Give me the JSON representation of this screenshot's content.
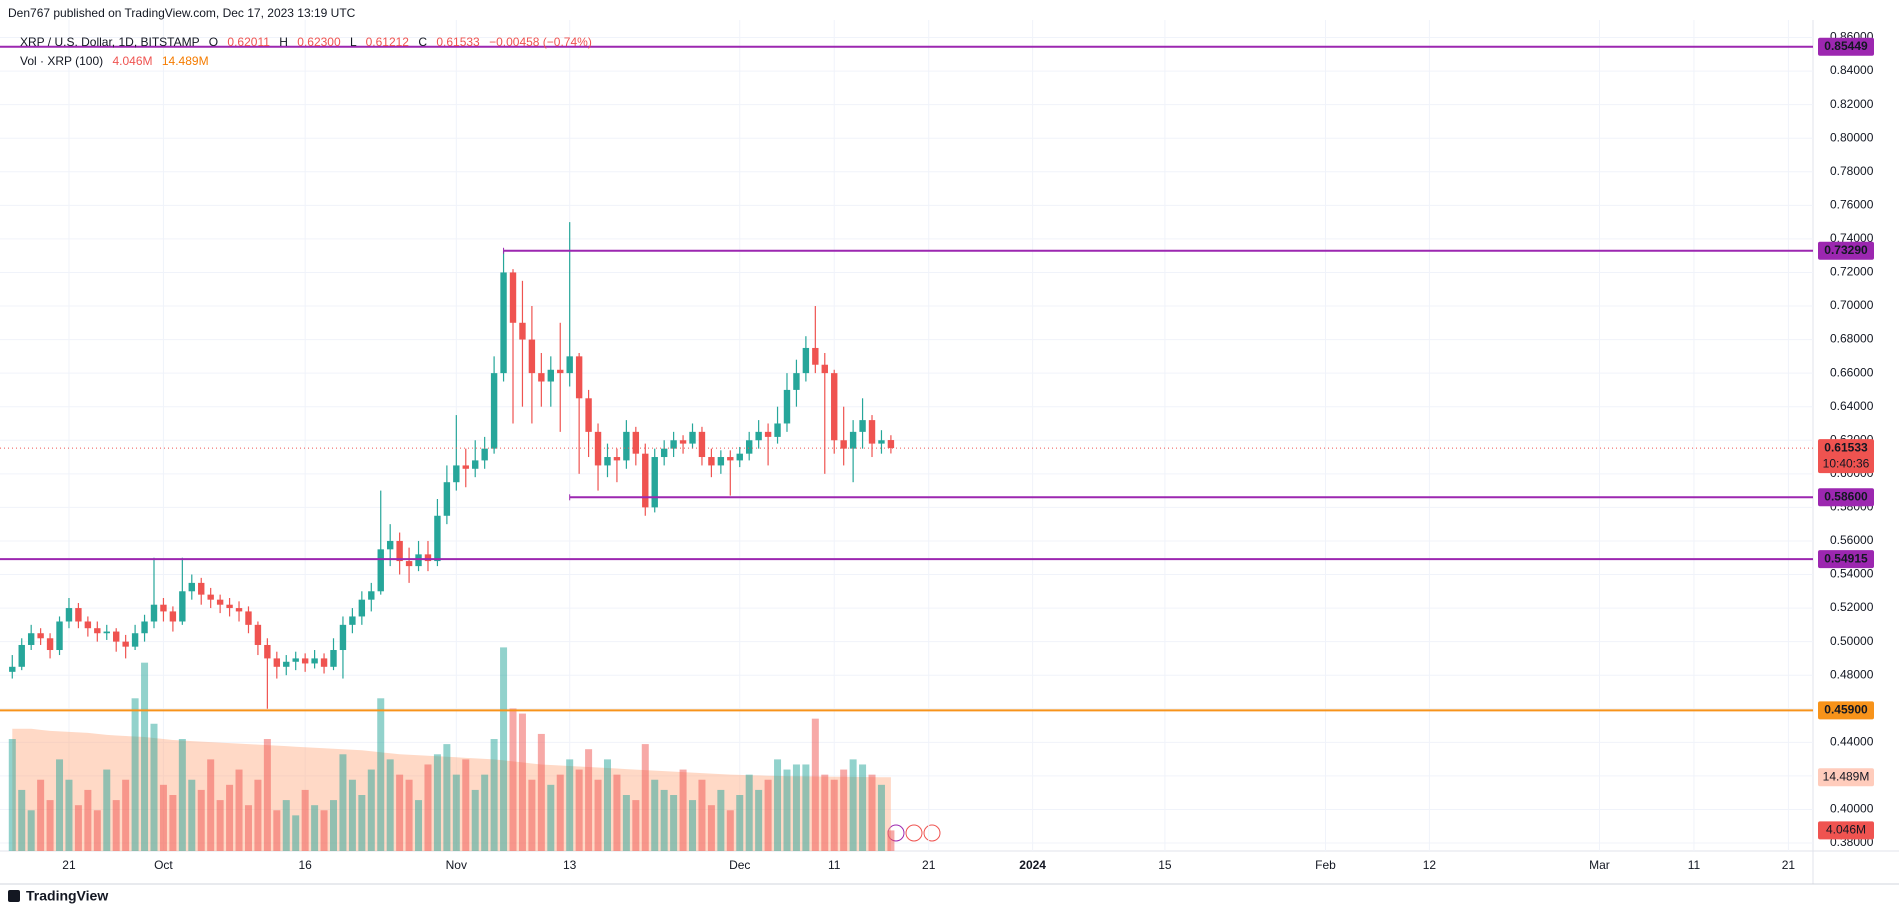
{
  "header": "Den767 published on TradingView.com, Dec 17, 2023 13:19 UTC",
  "footer": "TradingView",
  "chart_data": {
    "type": "candlestick",
    "symbol": "XRP / U.S. Dollar, 1D, BITSTAMP",
    "ohlc_legend": [
      {
        "key": "O",
        "value": "0.62011"
      },
      {
        "key": "H",
        "value": "0.62300"
      },
      {
        "key": "L",
        "value": "0.61212"
      },
      {
        "key": "C",
        "value": "0.61533"
      }
    ],
    "change": "−0.00458 (−0.74%)",
    "countdown": "10:40:36",
    "up_color": "#26a69a",
    "down_color": "#ef5350",
    "candles": [
      [
        0.482,
        0.492,
        0.478,
        0.485
      ],
      [
        0.485,
        0.502,
        0.483,
        0.498
      ],
      [
        0.498,
        0.51,
        0.495,
        0.505
      ],
      [
        0.505,
        0.508,
        0.498,
        0.502
      ],
      [
        0.502,
        0.505,
        0.49,
        0.495
      ],
      [
        0.495,
        0.515,
        0.492,
        0.512
      ],
      [
        0.512,
        0.526,
        0.508,
        0.52
      ],
      [
        0.52,
        0.523,
        0.508,
        0.512
      ],
      [
        0.512,
        0.515,
        0.503,
        0.508
      ],
      [
        0.508,
        0.512,
        0.5,
        0.505
      ],
      [
        0.505,
        0.51,
        0.501,
        0.506
      ],
      [
        0.506,
        0.508,
        0.494,
        0.5
      ],
      [
        0.5,
        0.504,
        0.49,
        0.497
      ],
      [
        0.497,
        0.51,
        0.495,
        0.505
      ],
      [
        0.505,
        0.516,
        0.5,
        0.512
      ],
      [
        0.512,
        0.55,
        0.508,
        0.522
      ],
      [
        0.522,
        0.526,
        0.512,
        0.518
      ],
      [
        0.518,
        0.521,
        0.506,
        0.512
      ],
      [
        0.512,
        0.55,
        0.51,
        0.53
      ],
      [
        0.53,
        0.54,
        0.525,
        0.535
      ],
      [
        0.535,
        0.538,
        0.522,
        0.528
      ],
      [
        0.528,
        0.532,
        0.52,
        0.525
      ],
      [
        0.525,
        0.528,
        0.517,
        0.522
      ],
      [
        0.522,
        0.526,
        0.515,
        0.52
      ],
      [
        0.52,
        0.524,
        0.512,
        0.518
      ],
      [
        0.518,
        0.521,
        0.505,
        0.51
      ],
      [
        0.51,
        0.512,
        0.492,
        0.498
      ],
      [
        0.498,
        0.502,
        0.46,
        0.49
      ],
      [
        0.49,
        0.494,
        0.478,
        0.485
      ],
      [
        0.485,
        0.492,
        0.48,
        0.488
      ],
      [
        0.488,
        0.494,
        0.483,
        0.49
      ],
      [
        0.49,
        0.493,
        0.482,
        0.487
      ],
      [
        0.487,
        0.495,
        0.484,
        0.49
      ],
      [
        0.49,
        0.493,
        0.481,
        0.485
      ],
      [
        0.485,
        0.502,
        0.483,
        0.495
      ],
      [
        0.495,
        0.515,
        0.478,
        0.51
      ],
      [
        0.51,
        0.52,
        0.505,
        0.515
      ],
      [
        0.515,
        0.53,
        0.51,
        0.525
      ],
      [
        0.525,
        0.535,
        0.518,
        0.53
      ],
      [
        0.53,
        0.59,
        0.528,
        0.555
      ],
      [
        0.555,
        0.57,
        0.545,
        0.56
      ],
      [
        0.56,
        0.565,
        0.54,
        0.548
      ],
      [
        0.548,
        0.556,
        0.535,
        0.545
      ],
      [
        0.545,
        0.56,
        0.542,
        0.552
      ],
      [
        0.552,
        0.56,
        0.542,
        0.548
      ],
      [
        0.548,
        0.585,
        0.545,
        0.575
      ],
      [
        0.575,
        0.605,
        0.57,
        0.595
      ],
      [
        0.595,
        0.635,
        0.59,
        0.605
      ],
      [
        0.605,
        0.615,
        0.592,
        0.603
      ],
      [
        0.603,
        0.62,
        0.598,
        0.608
      ],
      [
        0.608,
        0.622,
        0.603,
        0.615
      ],
      [
        0.615,
        0.67,
        0.612,
        0.66
      ],
      [
        0.66,
        0.733,
        0.655,
        0.72
      ],
      [
        0.72,
        0.722,
        0.63,
        0.69
      ],
      [
        0.69,
        0.715,
        0.64,
        0.68
      ],
      [
        0.68,
        0.7,
        0.63,
        0.66
      ],
      [
        0.66,
        0.672,
        0.64,
        0.655
      ],
      [
        0.655,
        0.67,
        0.64,
        0.662
      ],
      [
        0.662,
        0.69,
        0.625,
        0.66
      ],
      [
        0.66,
        0.75,
        0.652,
        0.67
      ],
      [
        0.67,
        0.672,
        0.6,
        0.645
      ],
      [
        0.645,
        0.65,
        0.61,
        0.625
      ],
      [
        0.625,
        0.63,
        0.59,
        0.605
      ],
      [
        0.605,
        0.618,
        0.598,
        0.61
      ],
      [
        0.61,
        0.615,
        0.595,
        0.608
      ],
      [
        0.608,
        0.632,
        0.603,
        0.625
      ],
      [
        0.625,
        0.628,
        0.605,
        0.612
      ],
      [
        0.612,
        0.618,
        0.575,
        0.58
      ],
      [
        0.58,
        0.615,
        0.577,
        0.61
      ],
      [
        0.61,
        0.62,
        0.605,
        0.615
      ],
      [
        0.615,
        0.625,
        0.61,
        0.62
      ],
      [
        0.62,
        0.623,
        0.612,
        0.618
      ],
      [
        0.618,
        0.63,
        0.615,
        0.625
      ],
      [
        0.625,
        0.628,
        0.605,
        0.61
      ],
      [
        0.61,
        0.615,
        0.598,
        0.605
      ],
      [
        0.605,
        0.614,
        0.6,
        0.61
      ],
      [
        0.61,
        0.614,
        0.587,
        0.608
      ],
      [
        0.608,
        0.616,
        0.604,
        0.612
      ],
      [
        0.612,
        0.625,
        0.608,
        0.62
      ],
      [
        0.62,
        0.632,
        0.615,
        0.625
      ],
      [
        0.625,
        0.63,
        0.605,
        0.622
      ],
      [
        0.622,
        0.64,
        0.618,
        0.63
      ],
      [
        0.63,
        0.66,
        0.625,
        0.65
      ],
      [
        0.65,
        0.668,
        0.64,
        0.66
      ],
      [
        0.66,
        0.682,
        0.655,
        0.675
      ],
      [
        0.675,
        0.7,
        0.66,
        0.665
      ],
      [
        0.665,
        0.672,
        0.6,
        0.66
      ],
      [
        0.66,
        0.662,
        0.612,
        0.62
      ],
      [
        0.62,
        0.64,
        0.605,
        0.615
      ],
      [
        0.615,
        0.632,
        0.595,
        0.625
      ],
      [
        0.625,
        0.645,
        0.615,
        0.632
      ],
      [
        0.632,
        0.635,
        0.61,
        0.618
      ],
      [
        0.618,
        0.626,
        0.612,
        0.62
      ],
      [
        0.62011,
        0.623,
        0.61212,
        0.61533
      ]
    ],
    "ylim": [
      0.38,
      0.86
    ],
    "yticks": [
      {
        "value": 0.38,
        "label": "0.38000"
      },
      {
        "value": 0.4,
        "label": "0.40000"
      },
      {
        "value": 0.42,
        "label": "0.42000"
      },
      {
        "value": 0.44,
        "label": "0.44000"
      },
      {
        "value": 0.46,
        "label": "0.46000"
      },
      {
        "value": 0.48,
        "label": "0.48000"
      },
      {
        "value": 0.5,
        "label": "0.50000"
      },
      {
        "value": 0.52,
        "label": "0.52000"
      },
      {
        "value": 0.54,
        "label": "0.54000"
      },
      {
        "value": 0.56,
        "label": "0.56000"
      },
      {
        "value": 0.58,
        "label": "0.58000"
      },
      {
        "value": 0.6,
        "label": "0.60000"
      },
      {
        "value": 0.62,
        "label": "0.62000"
      },
      {
        "value": 0.64,
        "label": "0.64000"
      },
      {
        "value": 0.66,
        "label": "0.66000"
      },
      {
        "value": 0.68,
        "label": "0.68000"
      },
      {
        "value": 0.7,
        "label": "0.70000"
      },
      {
        "value": 0.72,
        "label": "0.72000"
      },
      {
        "value": 0.74,
        "label": "0.74000"
      },
      {
        "value": 0.76,
        "label": "0.76000"
      },
      {
        "value": 0.78,
        "label": "0.78000"
      },
      {
        "value": 0.8,
        "label": "0.80000"
      },
      {
        "value": 0.82,
        "label": "0.82000"
      },
      {
        "value": 0.84,
        "label": "0.84000"
      },
      {
        "value": 0.86,
        "label": "0.86000"
      }
    ],
    "xlim": [
      -1.3,
      190.6
    ],
    "xticks": [
      {
        "value": 6,
        "label": "21"
      },
      {
        "value": 16,
        "label": "Oct"
      },
      {
        "value": 31,
        "label": "16"
      },
      {
        "value": 47,
        "label": "Nov"
      },
      {
        "value": 59,
        "label": "13"
      },
      {
        "value": 77,
        "label": "Dec"
      },
      {
        "value": 87,
        "label": "11"
      },
      {
        "value": 97,
        "label": "21"
      },
      {
        "value": 108,
        "label": "2024"
      },
      {
        "value": 122,
        "label": "15"
      },
      {
        "value": 139,
        "label": "Feb"
      },
      {
        "value": 150,
        "label": "12"
      },
      {
        "value": 168,
        "label": "Mar"
      },
      {
        "value": 178,
        "label": "11"
      },
      {
        "value": 188,
        "label": "21"
      }
    ],
    "grid": true,
    "levels": [
      {
        "value": 0.85449,
        "label": "0.85449",
        "color": "#9c27b0"
      },
      {
        "value": 0.7329,
        "label": "0.73290",
        "color": "#9c27b0",
        "x_start": 52
      },
      {
        "value": 0.586,
        "label": "0.58600",
        "color": "#9c27b0",
        "x_start": 59
      },
      {
        "value": 0.54915,
        "label": "0.54915",
        "color": "#9c27b0"
      },
      {
        "value": 0.459,
        "label": "0.45900",
        "color": "#f7931a"
      }
    ],
    "volume": {
      "name": "Vol · XRP (100)",
      "values": [
        22,
        12,
        8,
        14,
        10,
        18,
        14,
        9,
        12,
        8,
        16,
        10,
        14,
        30,
        37,
        25,
        13,
        11,
        22,
        14,
        12,
        18,
        10,
        13,
        16,
        9,
        14,
        22,
        8,
        10,
        7,
        12,
        9,
        8,
        10,
        19,
        14,
        11,
        16,
        30,
        18,
        15,
        14,
        10,
        17,
        19,
        21,
        15,
        18,
        12,
        15,
        22,
        40,
        28,
        27,
        14,
        23,
        13,
        15,
        18,
        16,
        20,
        14,
        18,
        15,
        11,
        10,
        21,
        14,
        12,
        11,
        16,
        10,
        14,
        9,
        12,
        8,
        11,
        15,
        12,
        14,
        18,
        16,
        17,
        17,
        26,
        15,
        14,
        16,
        18,
        17,
        15,
        13,
        4.046
      ],
      "ma": [
        24,
        24,
        24,
        23.8,
        23.6,
        23.5,
        23.4,
        23.3,
        23.2,
        23,
        22.8,
        22.7,
        22.6,
        22.5,
        22.4,
        22.2,
        22,
        21.8,
        21.7,
        21.6,
        21.5,
        21.4,
        21.3,
        21.2,
        21.1,
        21,
        20.9,
        20.8,
        20.7,
        20.6,
        20.5,
        20.4,
        20.3,
        20.2,
        20.1,
        20,
        19.9,
        19.8,
        19.6,
        19.4,
        19.2,
        19,
        18.9,
        18.8,
        18.7,
        18.6,
        18.5,
        18.4,
        18.3,
        18.2,
        18.1,
        18,
        17.8,
        17.6,
        17.4,
        17.2,
        17,
        16.9,
        16.8,
        16.7,
        16.6,
        16.5,
        16.4,
        16.3,
        16.2,
        16.1,
        16,
        15.9,
        15.8,
        15.7,
        15.6,
        15.5,
        15.4,
        15.3,
        15.2,
        15.1,
        15,
        14.95,
        14.9,
        14.85,
        14.8,
        14.75,
        14.7,
        14.68,
        14.66,
        14.64,
        14.62,
        14.6,
        14.58,
        14.56,
        14.54,
        14.52,
        14.5,
        14.489
      ],
      "value_label": "4.046M",
      "ma_label": "14.489M",
      "ma_color": "#ffab80"
    }
  }
}
